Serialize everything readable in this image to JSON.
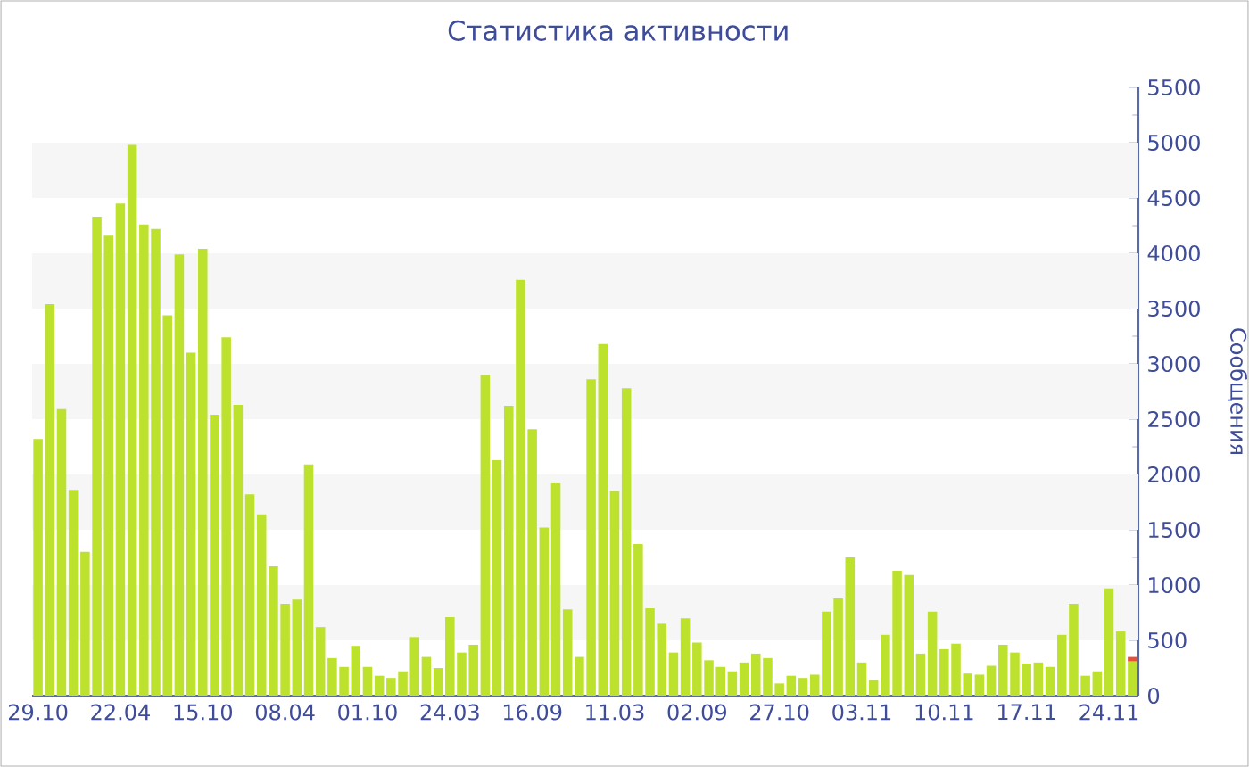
{
  "chart_data": {
    "type": "bar",
    "stacked": true,
    "title": "Статистика активности",
    "ylabel": "Сообщения",
    "categories": [
      "29.10",
      null,
      null,
      null,
      null,
      null,
      null,
      "22.04",
      null,
      null,
      null,
      null,
      null,
      null,
      "15.10",
      null,
      null,
      null,
      null,
      null,
      null,
      "08.04",
      null,
      null,
      null,
      null,
      null,
      null,
      "01.10",
      null,
      null,
      null,
      null,
      null,
      null,
      "24.03",
      null,
      null,
      null,
      null,
      null,
      null,
      "16.09",
      null,
      null,
      null,
      null,
      null,
      null,
      "11.03",
      null,
      null,
      null,
      null,
      null,
      null,
      "02.09",
      null,
      null,
      null,
      null,
      null,
      null,
      "27.10",
      null,
      null,
      null,
      null,
      null,
      null,
      "03.11",
      null,
      null,
      null,
      null,
      null,
      null,
      "10.11",
      null,
      null,
      null,
      null,
      null,
      null,
      "17.11",
      null,
      null,
      null,
      null,
      null,
      null,
      "24.11",
      null,
      null
    ],
    "series": [
      {
        "color": "#bde22e",
        "values": [
          2320,
          3540,
          2590,
          1860,
          1300,
          4330,
          4160,
          4450,
          4980,
          4260,
          4220,
          3440,
          3990,
          3100,
          4040,
          2540,
          3240,
          2630,
          1820,
          1640,
          1170,
          830,
          870,
          2090,
          620,
          340,
          260,
          450,
          260,
          180,
          160,
          220,
          530,
          350,
          250,
          710,
          390,
          460,
          2900,
          2130,
          2620,
          3760,
          2410,
          1520,
          1920,
          780,
          350,
          2860,
          3180,
          1850,
          2780,
          1370,
          790,
          650,
          390,
          700,
          480,
          320,
          260,
          220,
          300,
          380,
          340,
          110,
          180,
          160,
          190,
          760,
          880,
          1250,
          300,
          140,
          550,
          1130,
          1090,
          380,
          760,
          420,
          470,
          200,
          190,
          270,
          460,
          390,
          290,
          300,
          260,
          550,
          830,
          180,
          220,
          970,
          580,
          310
        ]
      },
      {
        "color": "#e8503a",
        "values": [
          null,
          null,
          null,
          null,
          null,
          null,
          null,
          null,
          null,
          null,
          null,
          null,
          null,
          null,
          null,
          null,
          null,
          null,
          null,
          null,
          null,
          null,
          null,
          null,
          null,
          null,
          null,
          null,
          null,
          null,
          null,
          null,
          null,
          null,
          null,
          null,
          null,
          null,
          null,
          null,
          null,
          null,
          null,
          null,
          null,
          null,
          null,
          null,
          null,
          null,
          null,
          null,
          null,
          null,
          null,
          null,
          null,
          null,
          null,
          null,
          null,
          null,
          null,
          null,
          null,
          null,
          null,
          null,
          null,
          null,
          null,
          null,
          null,
          null,
          null,
          null,
          null,
          null,
          null,
          null,
          null,
          null,
          null,
          null,
          null,
          null,
          null,
          null,
          null,
          null,
          null,
          null,
          null,
          40
        ]
      }
    ],
    "ylim": [
      0,
      5500
    ],
    "yticks": [
      0,
      500,
      1000,
      1500,
      2000,
      2500,
      3000,
      3500,
      4000,
      4500,
      5000,
      5500
    ],
    "bands": [
      {
        "axis": "y",
        "from": 500,
        "to": 1000,
        "color": "#f6f6f6"
      },
      {
        "axis": "y",
        "from": 1500,
        "to": 2000,
        "color": "#f6f6f6"
      },
      {
        "axis": "y",
        "from": 2500,
        "to": 3000,
        "color": "#f6f6f6"
      },
      {
        "axis": "y",
        "from": 3500,
        "to": 4000,
        "color": "#f6f6f6"
      },
      {
        "axis": "y",
        "from": 4500,
        "to": 5000,
        "color": "#f6f6f6"
      }
    ]
  }
}
